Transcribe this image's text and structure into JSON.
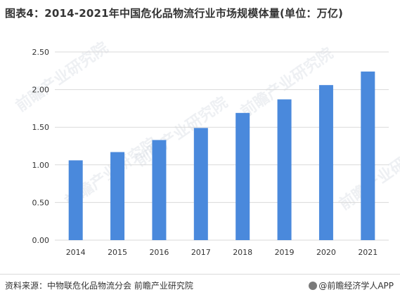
{
  "title": "图表4：2014-2021年中国危化品物流行业市场规模体量(单位：万亿)",
  "footer": {
    "source": "资料来源：中物联危化品物流分会 前瞻产业研究院",
    "brand": "@前瞻经济学人APP"
  },
  "watermark": {
    "text": "前瞻产业研究院"
  },
  "colors": {
    "bar": "#4a89dc",
    "grid": "#d9d9d9",
    "text": "#333333"
  },
  "chart_data": {
    "type": "bar",
    "categories": [
      "2014",
      "2015",
      "2016",
      "2017",
      "2018",
      "2019",
      "2020",
      "2021"
    ],
    "values": [
      1.06,
      1.17,
      1.33,
      1.49,
      1.69,
      1.87,
      2.06,
      2.24
    ],
    "yticks": [
      "0.00",
      "0.50",
      "1.00",
      "1.50",
      "2.00",
      "2.50"
    ],
    "ylim": [
      0,
      2.5
    ],
    "grid": true,
    "legend": "none"
  }
}
